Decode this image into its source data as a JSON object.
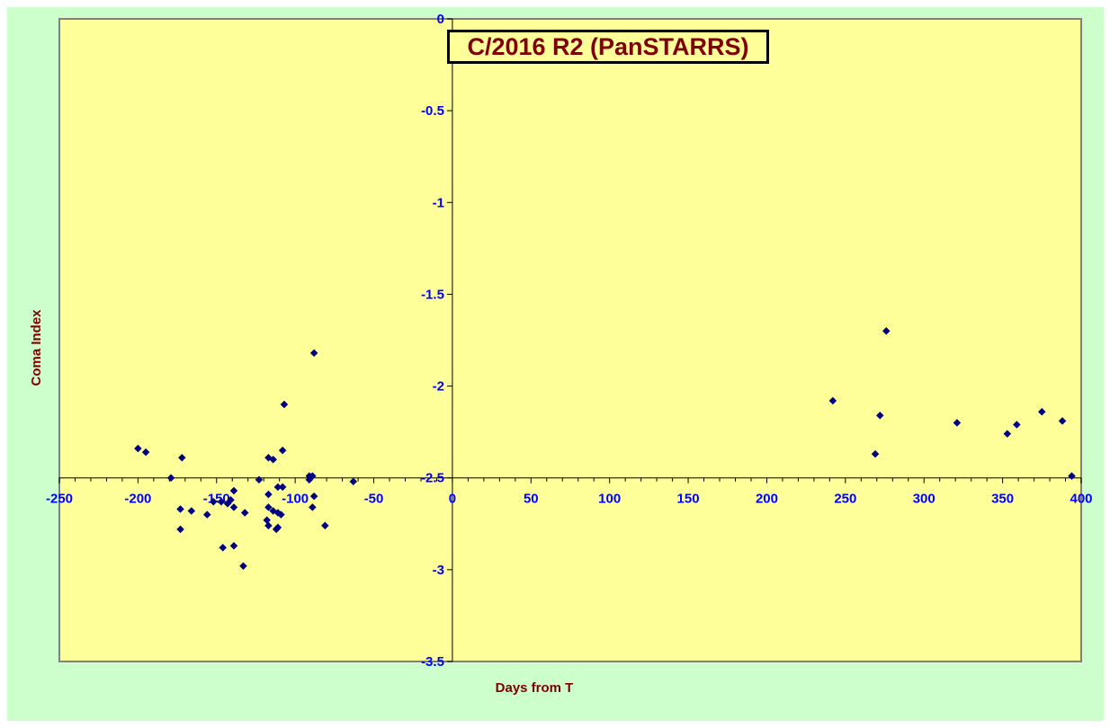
{
  "chart_data": {
    "type": "scatter",
    "title": "C/2016 R2 (PanSTARRS)",
    "xlabel": "Days from  T",
    "ylabel": "Coma Index",
    "xlim": [
      -250,
      400
    ],
    "ylim": [
      -3.5,
      0
    ],
    "x_ticks": [
      -250,
      -200,
      -150,
      -100,
      -50,
      0,
      50,
      100,
      150,
      200,
      250,
      300,
      350,
      400
    ],
    "y_ticks": [
      0,
      -0.5,
      -1,
      -1.5,
      -2,
      -2.5,
      -3,
      -3.5
    ],
    "x_tick_labels": [
      "-250",
      "-200",
      "-150",
      "-100",
      "-50",
      "0",
      "50",
      "100",
      "150",
      "200",
      "250",
      "300",
      "350",
      "400"
    ],
    "y_tick_labels": [
      "0",
      "-0.5",
      "-1",
      "-1.5",
      "-2",
      "-2.5",
      "-3",
      "-3.5"
    ],
    "grid": false,
    "legend": "none",
    "series": [
      {
        "marker": "diamond",
        "color": "#000080",
        "points": [
          [
            -200,
            -2.34
          ],
          [
            -195,
            -2.36
          ],
          [
            -179,
            -2.5
          ],
          [
            -172,
            -2.39
          ],
          [
            -173,
            -2.67
          ],
          [
            -166,
            -2.68
          ],
          [
            -173,
            -2.78
          ],
          [
            -156,
            -2.7
          ],
          [
            -152,
            -2.63
          ],
          [
            -147,
            -2.63
          ],
          [
            -143,
            -2.64
          ],
          [
            -141,
            -2.62
          ],
          [
            -139,
            -2.57
          ],
          [
            -139,
            -2.66
          ],
          [
            -132,
            -2.69
          ],
          [
            -146,
            -2.88
          ],
          [
            -139,
            -2.87
          ],
          [
            -133,
            -2.98
          ],
          [
            -123,
            -2.51
          ],
          [
            -117,
            -2.39
          ],
          [
            -114,
            -2.4
          ],
          [
            -117,
            -2.59
          ],
          [
            -117,
            -2.66
          ],
          [
            -114,
            -2.68
          ],
          [
            -111,
            -2.69
          ],
          [
            -109,
            -2.7
          ],
          [
            -118,
            -2.73
          ],
          [
            -117,
            -2.76
          ],
          [
            -112,
            -2.78
          ],
          [
            -111,
            -2.77
          ],
          [
            -111,
            -2.55
          ],
          [
            -108,
            -2.55
          ],
          [
            -108,
            -2.35
          ],
          [
            -107,
            -2.1
          ],
          [
            -91,
            -2.49
          ],
          [
            -89,
            -2.49
          ],
          [
            -91,
            -2.51
          ],
          [
            -88,
            -2.6
          ],
          [
            -89,
            -2.66
          ],
          [
            -81,
            -2.76
          ],
          [
            -88,
            -1.82
          ],
          [
            -63,
            -2.52
          ],
          [
            242,
            -2.08
          ],
          [
            269,
            -2.37
          ],
          [
            272,
            -2.16
          ],
          [
            276,
            -1.7
          ],
          [
            321,
            -2.2
          ],
          [
            353,
            -2.26
          ],
          [
            359,
            -2.21
          ],
          [
            375,
            -2.14
          ],
          [
            388,
            -2.19
          ],
          [
            394,
            -2.49
          ]
        ]
      }
    ]
  },
  "colors": {
    "chart_area": "#ccffcc",
    "plot_area": "#ffff99",
    "plot_border": "#808080",
    "axis_line": "#000000",
    "tick_label": "#0000ff",
    "axis_title": "#800000",
    "marker": "#000080"
  }
}
